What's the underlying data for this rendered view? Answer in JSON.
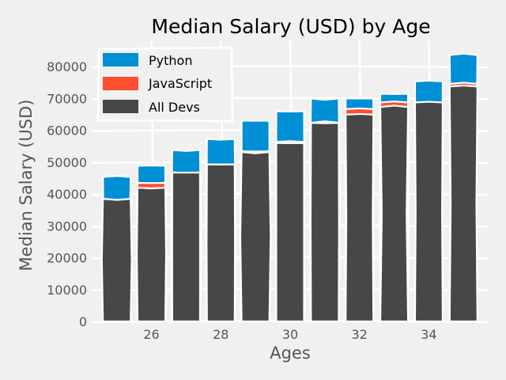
{
  "chart_data": {
    "type": "bar",
    "style": "stacked-overlay, xkcd",
    "title": "Median Salary (USD) by Age",
    "xlabel": "Ages",
    "ylabel": "Median Salary (USD)",
    "categories": [
      25,
      26,
      27,
      28,
      29,
      30,
      31,
      32,
      33,
      34,
      35
    ],
    "x_ticks": [
      "26",
      "28",
      "30",
      "32",
      "34"
    ],
    "y_ticks": [
      "0",
      "10000",
      "20000",
      "30000",
      "40000",
      "50000",
      "60000",
      "70000",
      "80000"
    ],
    "ylim": [
      0,
      88000
    ],
    "xlim": [
      24.3,
      35.7
    ],
    "grid": true,
    "legend_position": "top-left",
    "series": [
      {
        "name": "Python",
        "color": "#008fd5",
        "values": [
          45372,
          48876,
          53850,
          57287,
          63016,
          65998,
          70003,
          70000,
          71496,
          75370,
          83640
        ]
      },
      {
        "name": "JavaScript",
        "color": "#fc4f30",
        "values": [
          37810,
          43515,
          46823,
          49293,
          53437,
          56373,
          62375,
          66674,
          68745,
          68746,
          74583
        ]
      },
      {
        "name": "All Devs",
        "color": "#474747",
        "values": [
          38496,
          42000,
          46752,
          49320,
          53200,
          56000,
          62316,
          64928,
          67317,
          68748,
          73752
        ]
      }
    ]
  }
}
